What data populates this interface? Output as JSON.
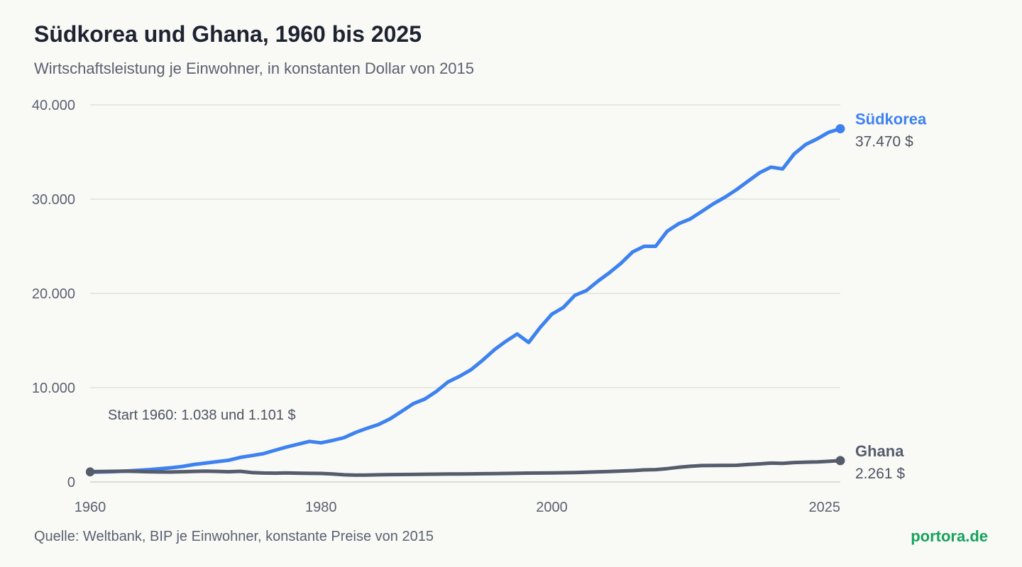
{
  "header": {
    "title": "Südkorea und Ghana, 1960 bis 2025",
    "subtitle": "Wirtschaftsleistung je Einwohner, in konstanten Dollar von 2015"
  },
  "footer": {
    "source": "Quelle: Weltbank, BIP je Einwohner, konstante Preise von 2015",
    "brand": "portora.de"
  },
  "chart_data": {
    "type": "line",
    "title": "Südkorea und Ghana, 1960 bis 2025",
    "subtitle": "Wirtschaftsleistung je Einwohner, in konstanten Dollar von 2015",
    "xlabel": "",
    "ylabel": "",
    "xlim": [
      1960,
      2025
    ],
    "ylim": [
      0,
      40000
    ],
    "x_ticks": [
      1960,
      1980,
      2000,
      2025
    ],
    "y_ticks": [
      0,
      10000,
      20000,
      30000,
      40000
    ],
    "y_tick_labels": [
      "0",
      "10.000",
      "20.000",
      "30.000",
      "40.000"
    ],
    "grid": true,
    "legend": "end-labels",
    "annotation": "Start 1960: 1.038 und 1.101 $",
    "series": [
      {
        "name": "Südkorea",
        "color": "#3d82f0",
        "end_label": "37.470 $",
        "x": [
          1960,
          1961,
          1962,
          1963,
          1964,
          1965,
          1966,
          1967,
          1968,
          1969,
          1970,
          1971,
          1972,
          1973,
          1974,
          1975,
          1976,
          1977,
          1978,
          1979,
          1980,
          1981,
          1982,
          1983,
          1984,
          1985,
          1986,
          1987,
          1988,
          1989,
          1990,
          1991,
          1992,
          1993,
          1994,
          1995,
          1996,
          1997,
          1998,
          1999,
          2000,
          2001,
          2002,
          2003,
          2004,
          2005,
          2006,
          2007,
          2008,
          2009,
          2010,
          2011,
          2012,
          2013,
          2014,
          2015,
          2016,
          2017,
          2018,
          2019,
          2020,
          2021,
          2022,
          2023,
          2024,
          2025
        ],
        "y": [
          1038,
          1060,
          1090,
          1150,
          1220,
          1300,
          1400,
          1500,
          1650,
          1850,
          2000,
          2150,
          2300,
          2600,
          2800,
          3000,
          3350,
          3700,
          4000,
          4300,
          4150,
          4400,
          4700,
          5250,
          5700,
          6100,
          6700,
          7500,
          8300,
          8800,
          9600,
          10600,
          11200,
          11900,
          12900,
          14000,
          14900,
          15700,
          14800,
          16400,
          17800,
          18500,
          19800,
          20300,
          21300,
          22200,
          23200,
          24400,
          25000,
          25000,
          26600,
          27400,
          27900,
          28700,
          29500,
          30200,
          31000,
          31900,
          32800,
          33400,
          33200,
          34800,
          35800,
          36400,
          37100,
          37470
        ]
      },
      {
        "name": "Ghana",
        "color": "#555c6b",
        "end_label": "2.261 $",
        "x": [
          1960,
          1961,
          1962,
          1963,
          1964,
          1965,
          1966,
          1967,
          1968,
          1969,
          1970,
          1971,
          1972,
          1973,
          1974,
          1975,
          1976,
          1977,
          1978,
          1979,
          1980,
          1981,
          1982,
          1983,
          1984,
          1985,
          1986,
          1987,
          1988,
          1989,
          1990,
          1991,
          1992,
          1993,
          1994,
          1995,
          1996,
          1997,
          1998,
          1999,
          2000,
          2001,
          2002,
          2003,
          2004,
          2005,
          2006,
          2007,
          2008,
          2009,
          2010,
          2011,
          2012,
          2013,
          2014,
          2015,
          2016,
          2017,
          2018,
          2019,
          2020,
          2021,
          2022,
          2023,
          2024,
          2025
        ],
        "y": [
          1101,
          1110,
          1130,
          1150,
          1120,
          1080,
          1060,
          1050,
          1080,
          1120,
          1150,
          1120,
          1080,
          1130,
          1000,
          950,
          930,
          960,
          930,
          910,
          900,
          840,
          760,
          720,
          740,
          760,
          780,
          790,
          800,
          820,
          830,
          840,
          850,
          860,
          870,
          880,
          900,
          920,
          940,
          950,
          960,
          980,
          1000,
          1030,
          1070,
          1110,
          1160,
          1200,
          1280,
          1310,
          1410,
          1560,
          1660,
          1740,
          1750,
          1760,
          1770,
          1850,
          1920,
          2000,
          1980,
          2060,
          2100,
          2130,
          2190,
          2261
        ]
      }
    ]
  }
}
